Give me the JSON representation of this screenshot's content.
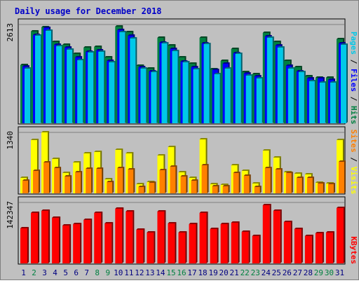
{
  "chart_data": {
    "title": "Daily usage for December 2018",
    "type": "bar",
    "categories": [
      "1",
      "2",
      "3",
      "4",
      "5",
      "6",
      "7",
      "8",
      "9",
      "10",
      "11",
      "12",
      "13",
      "14",
      "15",
      "16",
      "17",
      "18",
      "19",
      "20",
      "21",
      "22",
      "23",
      "24",
      "25",
      "26",
      "27",
      "28",
      "29",
      "30",
      "31"
    ],
    "weekend_days": [
      "2",
      "8",
      "9",
      "15",
      "16",
      "22",
      "23",
      "29",
      "30"
    ],
    "panels": [
      {
        "id": "hits",
        "ymax": 2613,
        "ymax_label": "2613",
        "series": [
          {
            "name": "Hits",
            "color": "#008040",
            "values": [
              1541,
              2423,
              2539,
              2153,
              2079,
              1836,
              2000,
              2011,
              1736,
              2565,
              2405,
              1516,
              1444,
              2258,
              2059,
              1740,
              1570,
              2252,
              1431,
              1649,
              1960,
              1351,
              1299,
              2384,
              2154,
              1655,
              1485,
              1236,
              1204,
              1196,
              2222
            ]
          },
          {
            "name": "Files",
            "color": "#0000ff",
            "values": [
              1500,
              2332,
              2515,
              2074,
              1996,
              1736,
              1895,
              1920,
              1650,
              2460,
              2318,
              1474,
              1377,
              2133,
              1956,
              1632,
              1480,
              2118,
              1413,
              1570,
              1850,
              1320,
              1241,
              2298,
              2059,
              1525,
              1374,
              1184,
              1180,
              1145,
              2108
            ]
          },
          {
            "name": "Pages",
            "color": "#00c8e8",
            "values": [
              1446,
              2311,
              2445,
              2040,
              1937,
              1669,
              1871,
              1881,
              1609,
              2412,
              2247,
              1452,
              1348,
              2106,
              1917,
              1604,
              1436,
              2098,
              1291,
              1445,
              1828,
              1260,
              1193,
              2258,
              1995,
              1442,
              1344,
              1114,
              1080,
              1081,
              2067
            ]
          }
        ],
        "label_segments": [
          {
            "text": "Pages",
            "color": "#00c8e8"
          },
          {
            "text": " / ",
            "color": "#000000"
          },
          {
            "text": "Files",
            "color": "#0000ff"
          },
          {
            "text": " / ",
            "color": "#000000"
          },
          {
            "text": "Hits",
            "color": "#008040"
          }
        ]
      },
      {
        "id": "visits",
        "ymax": 1340,
        "ymax_label": "1340",
        "series": [
          {
            "name": "Visits",
            "color": "#ffff00",
            "values": [
              338,
              1176,
              1340,
              759,
              452,
              683,
              885,
              914,
              306,
              949,
              878,
              202,
              245,
              836,
              1019,
              463,
              332,
              1191,
              193,
              186,
              618,
              495,
              209,
              947,
              793,
              465,
              434,
              423,
              227,
              219,
              1176
            ]
          },
          {
            "name": "Sites",
            "color": "#ff8000",
            "values": [
              275,
              497,
              683,
              551,
              368,
              468,
              540,
              541,
              241,
              554,
              531,
              135,
              227,
              515,
              586,
              374,
              272,
              617,
              150,
              148,
              440,
              384,
              143,
              558,
              519,
              441,
              343,
              334,
              217,
              198,
              697
            ]
          }
        ],
        "label_segments": [
          {
            "text": "Sites",
            "color": "#ff8000"
          },
          {
            "text": " / ",
            "color": "#000000"
          },
          {
            "text": "Visits",
            "color": "#ffff00"
          }
        ]
      },
      {
        "id": "kbytes",
        "ymax": 142347,
        "ymax_label": "142347",
        "series": [
          {
            "name": "KBytes",
            "color": "#ff0000",
            "values": [
              82000,
              117000,
              122000,
              106000,
              89000,
              91000,
              102000,
              117000,
              93000,
              128000,
              121000,
              79000,
              72000,
              121000,
              94000,
              72000,
              92000,
              117000,
              80000,
              92000,
              95000,
              74000,
              63000,
              136000,
              122000,
              97000,
              80000,
              63000,
              70000,
              72000,
              130000
            ]
          }
        ],
        "label_segments": [
          {
            "text": "KBytes",
            "color": "#ff0000"
          }
        ]
      }
    ]
  }
}
